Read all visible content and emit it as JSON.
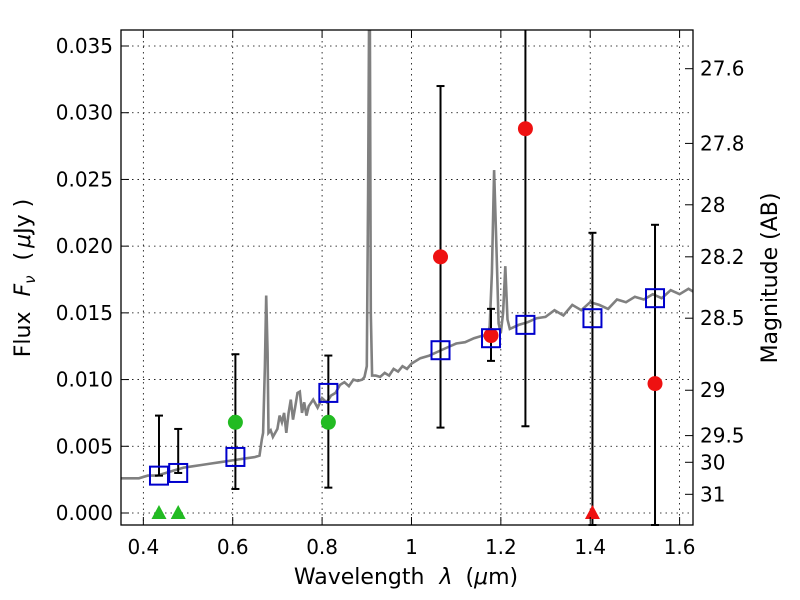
{
  "chart_data": {
    "type": "scatter",
    "xlabel_main": "Wavelength",
    "xlabel_sym": "λ",
    "xlabel_unit_open": "(",
    "xlabel_unit_mu": "μ",
    "xlabel_unit_rest": "m)",
    "ylabel_main": "Flux",
    "ylabel_sym": "F",
    "ylabel_sub": "ν",
    "ylabel_unit_open": "(",
    "ylabel_unit_mu": "μ",
    "ylabel_unit_rest": "Jy )",
    "y2label": "Magnitude (AB)",
    "xlim": [
      0.35,
      1.63
    ],
    "ylim": [
      -0.0009,
      0.0362
    ],
    "x_ticks": [
      0.4,
      0.6,
      0.8,
      1.0,
      1.2,
      1.4,
      1.6
    ],
    "x_tick_labels": [
      "0.4",
      "0.6",
      "0.8",
      "1",
      "1.2",
      "1.4",
      "1.6"
    ],
    "y_ticks": [
      0.0,
      0.005,
      0.01,
      0.015,
      0.02,
      0.025,
      0.03,
      0.035
    ],
    "y_tick_labels": [
      "0.000",
      "0.005",
      "0.010",
      "0.015",
      "0.020",
      "0.025",
      "0.030",
      "0.035"
    ],
    "y2_ticks": [
      {
        "label": "27.6",
        "flux": 0.0333
      },
      {
        "label": "27.8",
        "flux": 0.0277
      },
      {
        "label": "28",
        "flux": 0.0231
      },
      {
        "label": "28.2",
        "flux": 0.0192
      },
      {
        "label": "28.5",
        "flux": 0.0146
      },
      {
        "label": "29",
        "flux": 0.0092
      },
      {
        "label": "29.5",
        "flux": 0.0058
      },
      {
        "label": "30",
        "flux": 0.0038
      },
      {
        "label": "31",
        "flux": 0.0014
      }
    ],
    "model_points": [
      {
        "x": 0.435,
        "y": 0.0028,
        "yerr_lo": 0.0028,
        "yerr_hi": 0.0073
      },
      {
        "x": 0.478,
        "y": 0.003,
        "yerr_lo": 0.003,
        "yerr_hi": 0.0063
      },
      {
        "x": 0.606,
        "y": 0.0042,
        "yerr_lo": 0.0018,
        "yerr_hi": 0.0119
      },
      {
        "x": 0.814,
        "y": 0.009,
        "yerr_lo": 0.0019,
        "yerr_hi": 0.0118
      },
      {
        "x": 1.065,
        "y": 0.0122,
        "yerr_lo": 0.0064,
        "yerr_hi": 0.032
      },
      {
        "x": 1.178,
        "y": 0.0131,
        "yerr_lo": 0.0114,
        "yerr_hi": 0.0153
      },
      {
        "x": 1.255,
        "y": 0.0141,
        "yerr_lo": 0.0065,
        "yerr_hi": 0.037
      },
      {
        "x": 1.405,
        "y": 0.0146,
        "yerr_lo": -0.0009,
        "yerr_hi": 0.021
      },
      {
        "x": 1.545,
        "y": 0.0161,
        "yerr_lo": -0.0009,
        "yerr_hi": 0.0216
      }
    ],
    "green_circles": [
      {
        "x": 0.606,
        "y": 0.0068
      },
      {
        "x": 0.814,
        "y": 0.0068
      }
    ],
    "green_triangles": [
      {
        "x": 0.435,
        "y": 0.0
      },
      {
        "x": 0.478,
        "y": 0.0
      }
    ],
    "red_circles": [
      {
        "x": 1.065,
        "y": 0.0192
      },
      {
        "x": 1.178,
        "y": 0.0133
      },
      {
        "x": 1.255,
        "y": 0.0288
      },
      {
        "x": 1.545,
        "y": 0.0097
      }
    ],
    "red_triangles": [
      {
        "x": 1.405,
        "y": 0.0
      }
    ],
    "spectrum": [
      [
        0.35,
        0.0026
      ],
      [
        0.37,
        0.0026
      ],
      [
        0.39,
        0.0026
      ],
      [
        0.41,
        0.0028
      ],
      [
        0.43,
        0.0028
      ],
      [
        0.45,
        0.003
      ],
      [
        0.47,
        0.0032
      ],
      [
        0.49,
        0.0034
      ],
      [
        0.51,
        0.0035
      ],
      [
        0.53,
        0.0036
      ],
      [
        0.55,
        0.0037
      ],
      [
        0.57,
        0.0038
      ],
      [
        0.59,
        0.0039
      ],
      [
        0.61,
        0.004
      ],
      [
        0.63,
        0.0041
      ],
      [
        0.65,
        0.0042
      ],
      [
        0.66,
        0.0043
      ],
      [
        0.665,
        0.0055
      ],
      [
        0.668,
        0.006
      ],
      [
        0.672,
        0.011
      ],
      [
        0.675,
        0.0163
      ],
      [
        0.678,
        0.012
      ],
      [
        0.68,
        0.006
      ],
      [
        0.685,
        0.0062
      ],
      [
        0.69,
        0.0057
      ],
      [
        0.7,
        0.0063
      ],
      [
        0.705,
        0.0073
      ],
      [
        0.71,
        0.0068
      ],
      [
        0.715,
        0.0075
      ],
      [
        0.72,
        0.006
      ],
      [
        0.725,
        0.0075
      ],
      [
        0.73,
        0.0085
      ],
      [
        0.735,
        0.007
      ],
      [
        0.74,
        0.008
      ],
      [
        0.745,
        0.009
      ],
      [
        0.75,
        0.0091
      ],
      [
        0.755,
        0.0075
      ],
      [
        0.76,
        0.0083
      ],
      [
        0.765,
        0.0073
      ],
      [
        0.77,
        0.008
      ],
      [
        0.78,
        0.0085
      ],
      [
        0.79,
        0.0079
      ],
      [
        0.8,
        0.0086
      ],
      [
        0.81,
        0.0083
      ],
      [
        0.82,
        0.0088
      ],
      [
        0.83,
        0.009
      ],
      [
        0.84,
        0.0096
      ],
      [
        0.85,
        0.0098
      ],
      [
        0.86,
        0.0095
      ],
      [
        0.87,
        0.01
      ],
      [
        0.88,
        0.0099
      ],
      [
        0.89,
        0.01
      ],
      [
        0.895,
        0.0102
      ],
      [
        0.9,
        0.011
      ],
      [
        0.903,
        0.024
      ],
      [
        0.905,
        0.0362
      ],
      [
        0.907,
        0.0362
      ],
      [
        0.909,
        0.015
      ],
      [
        0.912,
        0.0103
      ],
      [
        0.92,
        0.0103
      ],
      [
        0.93,
        0.0102
      ],
      [
        0.94,
        0.0105
      ],
      [
        0.95,
        0.0103
      ],
      [
        0.96,
        0.0108
      ],
      [
        0.97,
        0.0106
      ],
      [
        0.98,
        0.011
      ],
      [
        0.99,
        0.0108
      ],
      [
        1.0,
        0.0112
      ],
      [
        1.02,
        0.0116
      ],
      [
        1.04,
        0.0118
      ],
      [
        1.06,
        0.0121
      ],
      [
        1.08,
        0.0124
      ],
      [
        1.1,
        0.0127
      ],
      [
        1.12,
        0.0128
      ],
      [
        1.14,
        0.0131
      ],
      [
        1.16,
        0.0133
      ],
      [
        1.17,
        0.0131
      ],
      [
        1.175,
        0.014
      ],
      [
        1.18,
        0.018
      ],
      [
        1.185,
        0.0257
      ],
      [
        1.19,
        0.02
      ],
      [
        1.195,
        0.0142
      ],
      [
        1.2,
        0.0135
      ],
      [
        1.205,
        0.015
      ],
      [
        1.21,
        0.0185
      ],
      [
        1.215,
        0.0145
      ],
      [
        1.22,
        0.0138
      ],
      [
        1.24,
        0.0141
      ],
      [
        1.26,
        0.0143
      ],
      [
        1.28,
        0.0146
      ],
      [
        1.3,
        0.0147
      ],
      [
        1.32,
        0.0152
      ],
      [
        1.34,
        0.0148
      ],
      [
        1.36,
        0.0156
      ],
      [
        1.38,
        0.0152
      ],
      [
        1.4,
        0.0158
      ],
      [
        1.42,
        0.0156
      ],
      [
        1.44,
        0.0153
      ],
      [
        1.46,
        0.016
      ],
      [
        1.48,
        0.0158
      ],
      [
        1.5,
        0.0162
      ],
      [
        1.52,
        0.016
      ],
      [
        1.54,
        0.0164
      ],
      [
        1.56,
        0.0161
      ],
      [
        1.58,
        0.0167
      ],
      [
        1.6,
        0.0164
      ],
      [
        1.62,
        0.0168
      ],
      [
        1.63,
        0.0166
      ]
    ],
    "colors": {
      "spectrum": "#808080",
      "model": "#0000cc",
      "green": "#22bb22",
      "red": "#ee1111",
      "errorbar": "#000000"
    }
  }
}
